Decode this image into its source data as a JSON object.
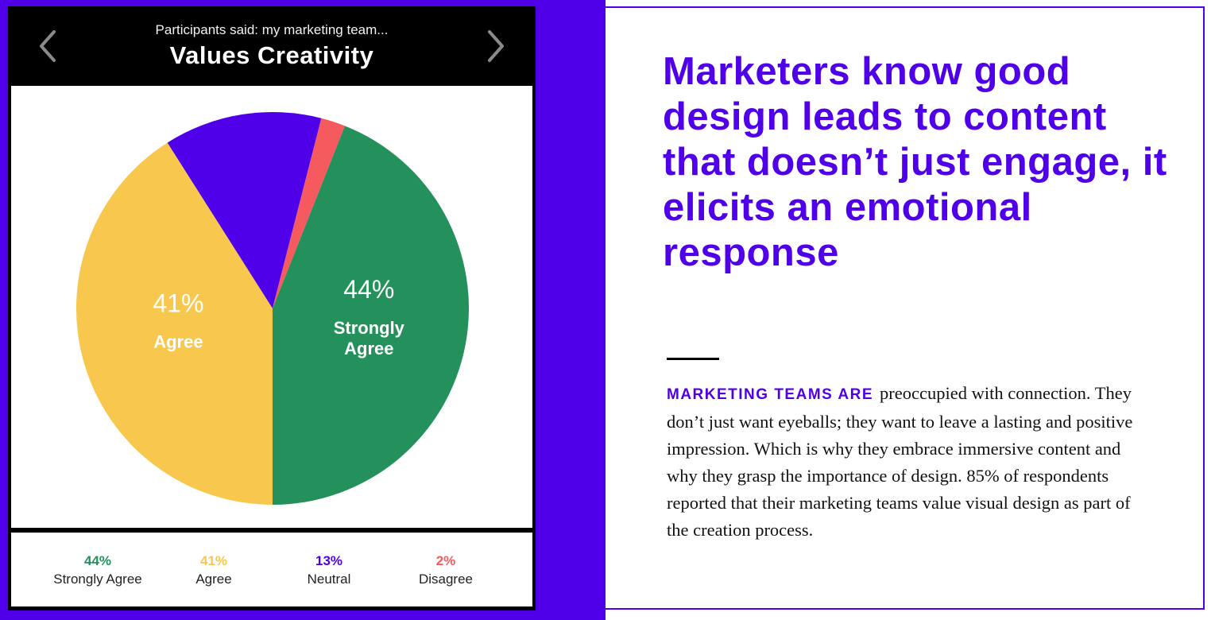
{
  "header": {
    "subtitle": "Participants said: my marketing team...",
    "title": "Values Creativity"
  },
  "chart_data": {
    "type": "pie",
    "title": "Values Creativity",
    "subtitle": "Participants said: my marketing team...",
    "slices": [
      {
        "name": "Strongly Agree",
        "value": 44,
        "percent_label": "44%",
        "color": "#24915c",
        "slice_label": "44%",
        "slice_label_name": [
          "Strongly",
          "Agree"
        ]
      },
      {
        "name": "Agree",
        "value": 41,
        "percent_label": "41%",
        "color": "#f8c74e",
        "slice_label": "41%",
        "slice_label_name": [
          "Agree"
        ]
      },
      {
        "name": "Neutral",
        "value": 13,
        "percent_label": "13%",
        "color": "#5000e8",
        "slice_label": "",
        "slice_label_name": []
      },
      {
        "name": "Disagree",
        "value": 2,
        "percent_label": "2%",
        "color": "#f55a5e",
        "slice_label": "",
        "slice_label_name": []
      }
    ],
    "legend_position": "bottom"
  },
  "legend": [
    {
      "pct": "44%",
      "label": "Strongly Agree",
      "color": "#24915c"
    },
    {
      "pct": "41%",
      "label": "Agree",
      "color": "#f8c74e"
    },
    {
      "pct": "13%",
      "label": "Neutral",
      "color": "#5000e8"
    },
    {
      "pct": "2%",
      "label": "Disagree",
      "color": "#f55a5e"
    }
  ],
  "headline": "Marketers know good design leads to content that doesn’t just engage, it elicits an emotional response",
  "body": {
    "lead": "MARKETING TEAMS ARE",
    "text": "preoccupied with connection. They don’t just want eyeballs; they want to leave a lasting and positive impression. Which is why they embrace immersive content and why they grasp the importance of design. 85% of respondents reported that their marketing teams value visual design as part of the creation process."
  },
  "colors": {
    "accent": "#5000e8",
    "strongly_agree": "#24915c",
    "agree": "#f8c74e",
    "neutral": "#5000e8",
    "disagree": "#f55a5e"
  }
}
